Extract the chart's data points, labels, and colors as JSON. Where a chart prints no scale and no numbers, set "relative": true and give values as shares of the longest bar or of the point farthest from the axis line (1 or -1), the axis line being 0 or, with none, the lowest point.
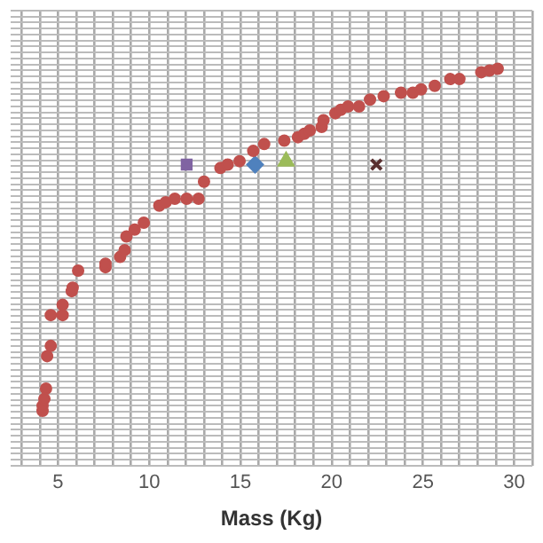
{
  "chart_data": {
    "type": "scatter",
    "xlabel": "Mass (Kg)",
    "relative": true,
    "xlim": [
      2.4,
      31
    ],
    "xticks": [
      {
        "value": 3,
        "label": null
      },
      {
        "value": 4,
        "label": null
      },
      5,
      {
        "value": 6,
        "label": null
      },
      {
        "value": 7,
        "label": null
      },
      {
        "value": 8,
        "label": null
      },
      {
        "value": 9,
        "label": null
      },
      10,
      {
        "value": 11,
        "label": null
      },
      {
        "value": 12,
        "label": null
      },
      {
        "value": 13,
        "label": null
      },
      {
        "value": 14,
        "label": null
      },
      15,
      {
        "value": 16,
        "label": null
      },
      {
        "value": 17,
        "label": null
      },
      {
        "value": 18,
        "label": null
      },
      {
        "value": 19,
        "label": null
      },
      20,
      {
        "value": 21,
        "label": null
      },
      {
        "value": 22,
        "label": null
      },
      {
        "value": 23,
        "label": null
      },
      {
        "value": 24,
        "label": null
      },
      25,
      {
        "value": 26,
        "label": null
      },
      {
        "value": 27,
        "label": null
      },
      {
        "value": 28,
        "label": null
      },
      {
        "value": 29,
        "label": null
      },
      30,
      {
        "value": 31,
        "label": null
      }
    ],
    "grid": true,
    "legend": false,
    "tick_labels": "x",
    "series": [
      {
        "color": "#c0504d",
        "marker": "circle",
        "x": [
          4.15,
          4.15,
          4.25,
          4.34,
          4.4,
          4.6,
          4.6,
          5.25,
          5.25,
          5.75,
          5.8,
          6.1,
          7.6,
          7.6,
          8.4,
          8.65,
          8.75,
          9.2,
          9.7,
          10.55,
          10.9,
          11.4,
          12.05,
          12.7,
          13.0,
          13.9,
          14.3,
          14.95,
          15.7,
          16.3,
          17.4,
          18.15,
          18.5,
          18.8,
          19.45,
          19.55,
          20.2,
          20.5,
          20.9,
          21.5,
          22.1,
          22.85,
          23.8,
          24.45,
          24.9,
          25.65,
          26.5,
          27.0,
          28.2,
          28.65,
          29.1
        ],
        "values": [
          0,
          0.015,
          0.035,
          0.065,
          0.16,
          0.19,
          0.28,
          0.28,
          0.31,
          0.35,
          0.36,
          0.41,
          0.42,
          0.43,
          0.45,
          0.47,
          0.51,
          0.53,
          0.55,
          0.6,
          0.61,
          0.62,
          0.62,
          0.62,
          0.67,
          0.71,
          0.72,
          0.73,
          0.76,
          0.78,
          0.79,
          0.8,
          0.81,
          0.82,
          0.83,
          0.85,
          0.87,
          0.88,
          0.89,
          0.89,
          0.91,
          0.92,
          0.93,
          0.93,
          0.94,
          0.95,
          0.97,
          0.97,
          0.99,
          0.995,
          1
        ]
      },
      {
        "color": "#8064a2",
        "marker": "square",
        "x": [
          12.05
        ],
        "values": [
          0.72
        ]
      },
      {
        "color": "#4f81bd",
        "marker": "diamond",
        "x": [
          15.8
        ],
        "values": [
          0.72
        ]
      },
      {
        "color": "#9bbb59",
        "marker": "triangle",
        "x": [
          17.5
        ],
        "values": [
          0.73
        ]
      },
      {
        "color": "#5a3030",
        "marker": "cross",
        "x": [
          22.45
        ],
        "values": [
          0.72
        ]
      }
    ]
  }
}
